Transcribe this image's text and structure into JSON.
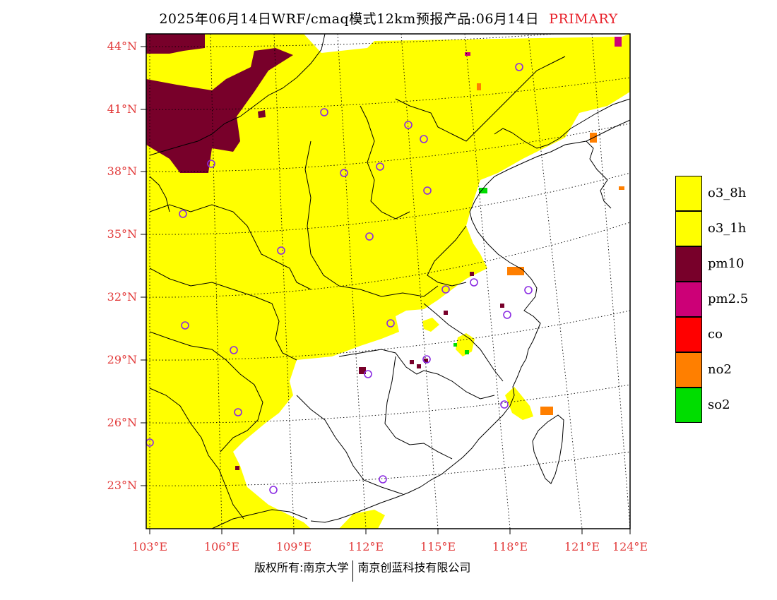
{
  "header": {
    "title": "2025年06月14日WRF/cmaq模式12km预报产品:06月14日",
    "tag": "PRIMARY"
  },
  "axes": {
    "lat_labels": [
      "44°N",
      "41°N",
      "38°N",
      "35°N",
      "32°N",
      "29°N",
      "26°N",
      "23°N"
    ],
    "lon_labels": [
      "103°E",
      "106°E",
      "109°E",
      "112°E",
      "115°E",
      "118°E",
      "121°E",
      "124°E"
    ]
  },
  "legend": {
    "items": [
      {
        "label": "o3_8h",
        "color": "#ffff00"
      },
      {
        "label": "o3_1h",
        "color": "#ffff00"
      },
      {
        "label": "pm10",
        "color": "#78002a"
      },
      {
        "label": "pm2.5",
        "color": "#cc0077"
      },
      {
        "label": "co",
        "color": "#ff0000"
      },
      {
        "label": "no2",
        "color": "#ff7f00"
      },
      {
        "label": "so2",
        "color": "#00dd00"
      }
    ]
  },
  "footer": {
    "left": "版权所有:南京大学",
    "right": "南京创蓝科技有限公司"
  },
  "map": {
    "lon_range": [
      103,
      124
    ],
    "lat_range": [
      21,
      44.5
    ],
    "station_color": "#8a2be2",
    "boundary_color": "#000000",
    "primary_pollutant_colors": {
      "o3": "#ffff00",
      "pm10": "#78002a",
      "pm25": "#cc0077",
      "no2": "#ff7f00",
      "so2": "#00dd00"
    }
  }
}
